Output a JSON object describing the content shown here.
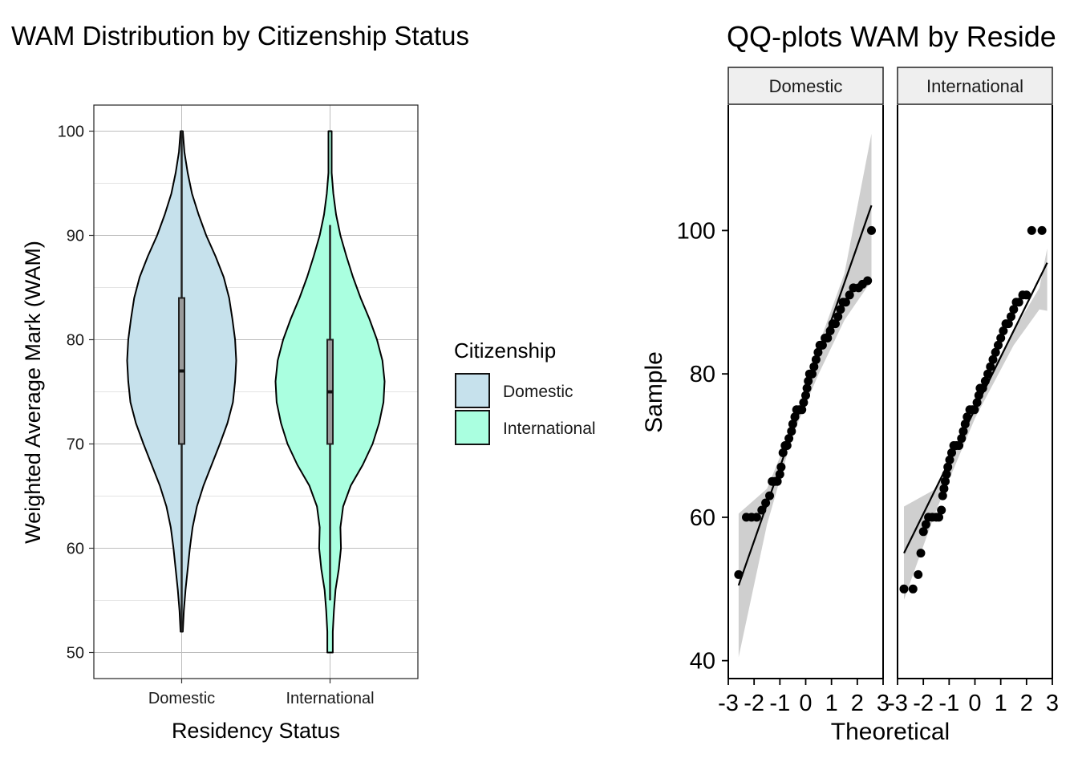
{
  "chart_data": [
    {
      "type": "violin",
      "title": "WAM Distribution by Citizenship Status",
      "xlabel": "Residency Status",
      "ylabel": "Weighted Average Mark (WAM)",
      "categories": [
        "Domestic",
        "International"
      ],
      "ylim": [
        47.5,
        102.5
      ],
      "yticks": [
        50,
        60,
        70,
        80,
        90,
        100
      ],
      "grid": true,
      "legend": {
        "title": "Citizenship",
        "placement": "right",
        "entries": [
          {
            "label": "Domestic",
            "color": "#c6e1ec"
          },
          {
            "label": "International",
            "color": "#aaffe0"
          }
        ]
      },
      "series": [
        {
          "name": "Domestic",
          "color": "#c6e1ec",
          "min": 52,
          "q1": 70,
          "median": 77,
          "q3": 84,
          "max": 100,
          "density_profile": [
            [
              52,
              0.02
            ],
            [
              54,
              0.04
            ],
            [
              56,
              0.07
            ],
            [
              58,
              0.11
            ],
            [
              60,
              0.15
            ],
            [
              62,
              0.2
            ],
            [
              64,
              0.28
            ],
            [
              66,
              0.4
            ],
            [
              68,
              0.55
            ],
            [
              70,
              0.7
            ],
            [
              72,
              0.84
            ],
            [
              74,
              0.94
            ],
            [
              76,
              0.98
            ],
            [
              78,
              1.0
            ],
            [
              80,
              0.98
            ],
            [
              82,
              0.93
            ],
            [
              84,
              0.87
            ],
            [
              86,
              0.77
            ],
            [
              88,
              0.62
            ],
            [
              90,
              0.45
            ],
            [
              92,
              0.31
            ],
            [
              94,
              0.19
            ],
            [
              96,
              0.11
            ],
            [
              98,
              0.05
            ],
            [
              100,
              0.02
            ]
          ]
        },
        {
          "name": "International",
          "color": "#aaffe0",
          "min": 50,
          "q1": 70,
          "median": 75,
          "q3": 80,
          "max": 100,
          "whisker_low": 55,
          "whisker_high": 91,
          "density_profile": [
            [
              50,
              0.05
            ],
            [
              52,
              0.05
            ],
            [
              54,
              0.07
            ],
            [
              56,
              0.1
            ],
            [
              58,
              0.16
            ],
            [
              60,
              0.2
            ],
            [
              62,
              0.19
            ],
            [
              64,
              0.24
            ],
            [
              66,
              0.38
            ],
            [
              68,
              0.6
            ],
            [
              70,
              0.78
            ],
            [
              72,
              0.9
            ],
            [
              74,
              0.98
            ],
            [
              76,
              1.0
            ],
            [
              78,
              0.96
            ],
            [
              80,
              0.86
            ],
            [
              82,
              0.72
            ],
            [
              84,
              0.56
            ],
            [
              86,
              0.42
            ],
            [
              88,
              0.3
            ],
            [
              90,
              0.19
            ],
            [
              92,
              0.11
            ],
            [
              94,
              0.06
            ],
            [
              96,
              0.03
            ],
            [
              98,
              0.03
            ],
            [
              100,
              0.03
            ]
          ]
        }
      ]
    },
    {
      "type": "scatter",
      "subtype": "qq-plot",
      "title": "QQ-plots WAM by Reside",
      "xlabel": "Theoretical",
      "ylabel": "Sample",
      "xlim": [
        -3,
        3
      ],
      "ylim": [
        37.5,
        117.5
      ],
      "xticks": [
        -3,
        -2,
        -1,
        0,
        1,
        2,
        3
      ],
      "yticks": [
        40,
        60,
        80,
        100
      ],
      "facets": [
        {
          "label": "Domestic",
          "line": {
            "x": [
              -2.6,
              2.55
            ],
            "y": [
              50.5,
              103.5
            ]
          },
          "band_upper": [
            [
              -2.6,
              60.5
            ],
            [
              -1.5,
              64.0
            ],
            [
              -0.5,
              72.8
            ],
            [
              0.5,
              84.0
            ],
            [
              1.5,
              94.0
            ],
            [
              2.55,
              113.5
            ]
          ],
          "band_lower": [
            [
              -2.6,
              40.5
            ],
            [
              -1.5,
              59.0
            ],
            [
              -0.5,
              71.5
            ],
            [
              0.5,
              80.0
            ],
            [
              1.5,
              87.5
            ],
            [
              2.55,
              93.0
            ]
          ],
          "points": [
            [
              -2.6,
              52
            ],
            [
              -2.3,
              60
            ],
            [
              -2.1,
              60
            ],
            [
              -1.9,
              60
            ],
            [
              -1.7,
              61
            ],
            [
              -1.55,
              62
            ],
            [
              -1.4,
              63
            ],
            [
              -1.3,
              65
            ],
            [
              -1.2,
              65
            ],
            [
              -1.1,
              65
            ],
            [
              -1.0,
              66
            ],
            [
              -0.95,
              67
            ],
            [
              -0.88,
              69
            ],
            [
              -0.8,
              70
            ],
            [
              -0.72,
              70
            ],
            [
              -0.65,
              71
            ],
            [
              -0.55,
              72
            ],
            [
              -0.5,
              73
            ],
            [
              -0.42,
              74
            ],
            [
              -0.35,
              75
            ],
            [
              -0.25,
              75
            ],
            [
              -0.15,
              75
            ],
            [
              -0.08,
              76
            ],
            [
              0.0,
              77
            ],
            [
              0.05,
              78
            ],
            [
              0.1,
              79
            ],
            [
              0.15,
              80
            ],
            [
              0.25,
              80
            ],
            [
              0.32,
              81
            ],
            [
              0.4,
              82
            ],
            [
              0.48,
              83
            ],
            [
              0.55,
              84
            ],
            [
              0.65,
              84
            ],
            [
              0.75,
              85
            ],
            [
              0.85,
              85
            ],
            [
              0.95,
              86
            ],
            [
              1.05,
              87
            ],
            [
              1.15,
              87
            ],
            [
              1.25,
              88
            ],
            [
              1.35,
              89
            ],
            [
              1.45,
              90
            ],
            [
              1.55,
              90
            ],
            [
              1.7,
              91
            ],
            [
              1.85,
              92
            ],
            [
              2.05,
              92
            ],
            [
              2.2,
              92.5
            ],
            [
              2.4,
              93
            ],
            [
              2.55,
              100
            ]
          ]
        },
        {
          "label": "International",
          "line": {
            "x": [
              -2.75,
              2.8
            ],
            "y": [
              55.0,
              95.5
            ]
          },
          "band_upper": [
            [
              -2.75,
              61.5
            ],
            [
              -1.5,
              64.0
            ],
            [
              0.0,
              76.2
            ],
            [
              1.5,
              86.0
            ],
            [
              2.5,
              92.0
            ],
            [
              2.8,
              97.5
            ]
          ],
          "band_lower": [
            [
              -2.75,
              48.5
            ],
            [
              -1.5,
              61.0
            ],
            [
              0.0,
              73.8
            ],
            [
              1.5,
              84.0
            ],
            [
              2.5,
              89.0
            ],
            [
              2.8,
              88.8
            ]
          ],
          "points": [
            [
              -2.75,
              50
            ],
            [
              -2.4,
              50
            ],
            [
              -2.2,
              52
            ],
            [
              -2.1,
              55
            ],
            [
              -2.0,
              58
            ],
            [
              -1.9,
              59
            ],
            [
              -1.8,
              60
            ],
            [
              -1.65,
              60
            ],
            [
              -1.5,
              60
            ],
            [
              -1.4,
              60
            ],
            [
              -1.3,
              61
            ],
            [
              -1.25,
              63
            ],
            [
              -1.2,
              64
            ],
            [
              -1.15,
              65
            ],
            [
              -1.1,
              66
            ],
            [
              -1.05,
              67
            ],
            [
              -0.98,
              68
            ],
            [
              -0.9,
              69
            ],
            [
              -0.82,
              70
            ],
            [
              -0.72,
              70
            ],
            [
              -0.62,
              70
            ],
            [
              -0.52,
              71
            ],
            [
              -0.45,
              72
            ],
            [
              -0.38,
              73
            ],
            [
              -0.3,
              74
            ],
            [
              -0.2,
              75
            ],
            [
              -0.1,
              75
            ],
            [
              -0.02,
              75
            ],
            [
              0.08,
              76
            ],
            [
              0.15,
              77
            ],
            [
              0.2,
              78
            ],
            [
              0.3,
              78
            ],
            [
              0.4,
              79
            ],
            [
              0.5,
              80
            ],
            [
              0.6,
              81
            ],
            [
              0.7,
              82
            ],
            [
              0.8,
              83
            ],
            [
              0.9,
              84
            ],
            [
              1.0,
              85
            ],
            [
              1.1,
              86
            ],
            [
              1.2,
              87
            ],
            [
              1.3,
              87
            ],
            [
              1.4,
              88
            ],
            [
              1.5,
              89
            ],
            [
              1.6,
              90
            ],
            [
              1.7,
              90
            ],
            [
              1.85,
              91
            ],
            [
              2.0,
              91
            ],
            [
              2.2,
              100
            ],
            [
              2.6,
              100
            ]
          ]
        }
      ]
    }
  ]
}
